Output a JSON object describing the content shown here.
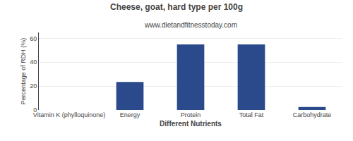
{
  "chart_data": {
    "type": "bar",
    "title": "Cheese, goat, hard type per 100g",
    "subtitle": "www.dietandfitnesstoday.com",
    "xlabel": "Different Nutrients",
    "ylabel": "Percentage of RDH (%)",
    "categories": [
      "Vitamin K (phylloquinone)",
      "Energy",
      "Protein",
      "Total Fat",
      "Carbohydrate"
    ],
    "values": [
      0,
      23.5,
      55,
      55,
      2.5
    ],
    "color": "#2b4a8b",
    "ylim": [
      0,
      65
    ],
    "yticks": [
      0,
      20,
      40,
      60
    ],
    "grid": true
  }
}
